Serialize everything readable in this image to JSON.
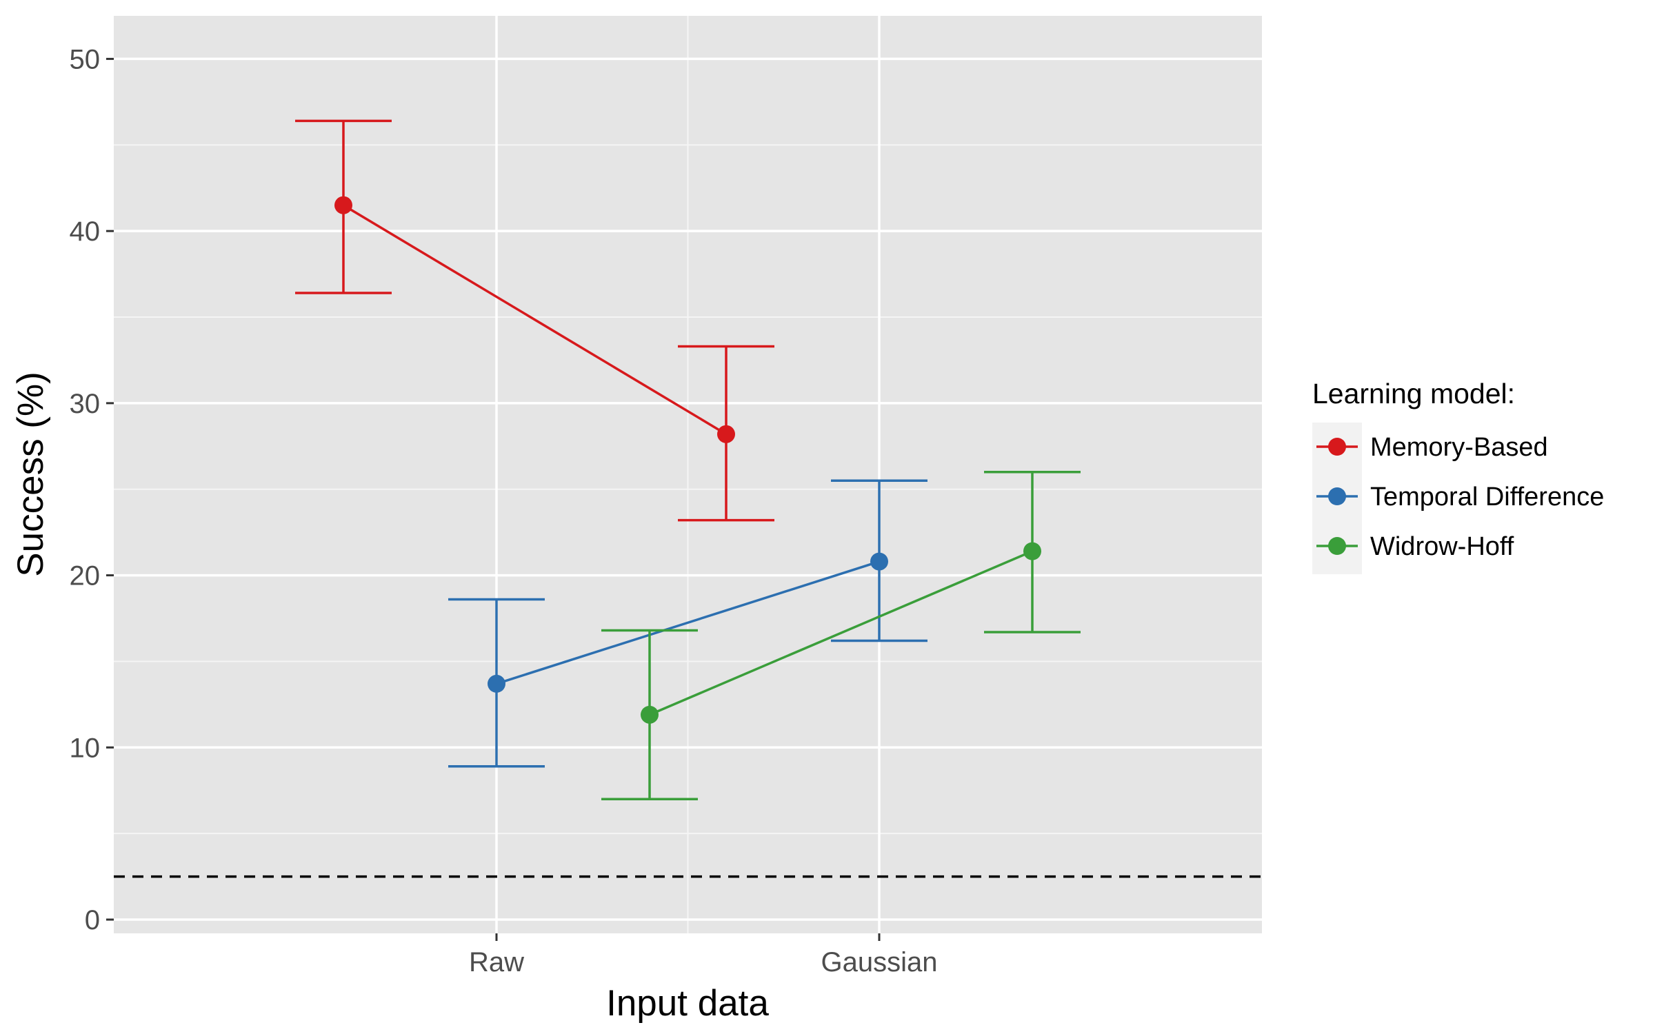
{
  "chart_data": {
    "type": "line",
    "title": "",
    "xlabel": "Input data",
    "ylabel": "Success (%)",
    "categories": [
      "Raw",
      "Gaussian"
    ],
    "ylim": [
      -0.8,
      52.5
    ],
    "yticks": [
      0,
      10,
      20,
      30,
      40,
      50
    ],
    "grid": true,
    "reference_line": {
      "y": 2.5,
      "style": "dashed",
      "color": "#000000"
    },
    "legend": {
      "title": "Learning model:",
      "placement": "right"
    },
    "series": [
      {
        "name": "Memory-Based",
        "color": "#d7191c",
        "values": [
          41.5,
          28.2
        ],
        "lower": [
          36.4,
          23.2
        ],
        "upper": [
          46.4,
          33.3
        ]
      },
      {
        "name": "Temporal Difference",
        "color": "#2c6fb0",
        "values": [
          13.7,
          20.8
        ],
        "lower": [
          8.9,
          16.2
        ],
        "upper": [
          18.6,
          25.5
        ]
      },
      {
        "name": "Widrow-Hoff",
        "color": "#3a9e3a",
        "values": [
          11.9,
          21.4
        ],
        "lower": [
          7.0,
          16.7
        ],
        "upper": [
          16.8,
          26.0
        ]
      }
    ]
  }
}
